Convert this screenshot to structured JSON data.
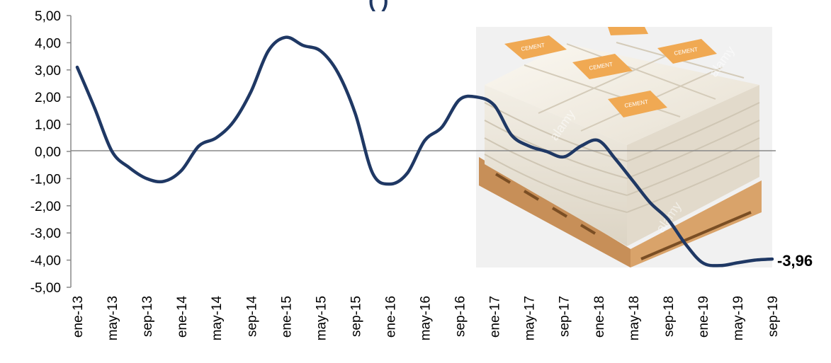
{
  "chart_data": {
    "type": "line",
    "title": "(                                                    )",
    "xlabel": "",
    "ylabel": "",
    "ylim": [
      -5,
      5
    ],
    "y_ticks": [
      "5,00",
      "4,00",
      "3,00",
      "2,00",
      "1,00",
      "0,00",
      "-1,00",
      "-2,00",
      "-3,00",
      "-4,00",
      "-5,00"
    ],
    "x_tick_labels": [
      "ene-13",
      "may-13",
      "sep-13",
      "ene-14",
      "may-14",
      "sep-14",
      "ene-15",
      "may-15",
      "sep-15",
      "ene-16",
      "may-16",
      "sep-16",
      "ene-17",
      "may-17",
      "sep-17",
      "ene-18",
      "may-18",
      "sep-18",
      "ene-19",
      "may-19",
      "sep-19"
    ],
    "series": [
      {
        "color": "#1f3864",
        "x": [
          "ene-13",
          "mar-13",
          "may-13",
          "jul-13",
          "sep-13",
          "nov-13",
          "ene-14",
          "mar-14",
          "may-14",
          "jul-14",
          "sep-14",
          "nov-14",
          "ene-15",
          "mar-15",
          "may-15",
          "jul-15",
          "sep-15",
          "nov-15",
          "ene-16",
          "mar-16",
          "may-16",
          "jul-16",
          "sep-16",
          "nov-16",
          "ene-17",
          "mar-17",
          "may-17",
          "jul-17",
          "sep-17",
          "nov-17",
          "ene-18",
          "mar-18",
          "may-18",
          "jul-18",
          "sep-18",
          "nov-18",
          "ene-19",
          "mar-19",
          "may-19",
          "jul-19",
          "sep-19"
        ],
        "values": [
          3.1,
          1.6,
          0.0,
          -0.6,
          -1.0,
          -1.1,
          -0.7,
          0.2,
          0.5,
          1.1,
          2.2,
          3.7,
          4.2,
          3.9,
          3.7,
          2.9,
          1.4,
          -0.8,
          -1.2,
          -0.8,
          0.4,
          0.9,
          1.9,
          2.0,
          1.7,
          0.6,
          0.2,
          0.0,
          -0.2,
          0.2,
          0.4,
          -0.3,
          -1.1,
          -1.9,
          -2.5,
          -3.4,
          -4.1,
          -4.2,
          -4.1,
          -4.0,
          -3.96
        ]
      }
    ],
    "end_label": "-3,96",
    "grid": false,
    "background_image": {
      "type": "photo",
      "subject": "pallet of cement bags",
      "bag_label": "CEMENT",
      "watermark": "alamy"
    }
  }
}
